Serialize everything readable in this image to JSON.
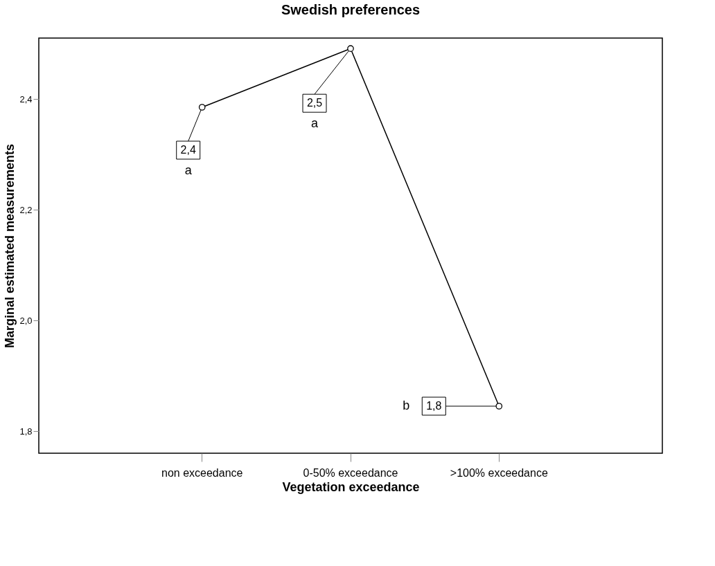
{
  "chart_data": {
    "type": "line",
    "title": "Swedish preferences",
    "xlabel": "Vegetation exceedance",
    "ylabel": "Marginal estimated measurements",
    "categories": [
      "non exceedance",
      "0-50% exceedance",
      ">100% exceedance"
    ],
    "series": [
      {
        "color": "#000000",
        "values": [
          2.385,
          2.491,
          1.845
        ],
        "value_labels": [
          "2,4",
          "2,5",
          "1,8"
        ]
      }
    ],
    "annotations": [
      "a",
      "a",
      "b"
    ],
    "ylim": [
      1.76,
      2.51
    ],
    "yticks": [
      {
        "value": 1.8,
        "label": "1,8"
      },
      {
        "value": 2.0,
        "label": "2,0"
      },
      {
        "value": 2.2,
        "label": "2,2"
      },
      {
        "value": 2.4,
        "label": "2,4"
      }
    ],
    "grid": false,
    "marker": "circle",
    "line_style": "solid"
  }
}
